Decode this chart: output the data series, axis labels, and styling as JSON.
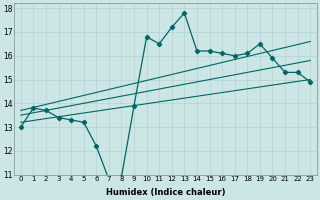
{
  "title": "",
  "xlabel": "Humidex (Indice chaleur)",
  "bg_color": "#cce5e5",
  "line_color": "#006666",
  "xlim": [
    -0.5,
    23.5
  ],
  "ylim": [
    11,
    18.2
  ],
  "yticks": [
    11,
    12,
    13,
    14,
    15,
    16,
    17,
    18
  ],
  "xticks": [
    0,
    1,
    2,
    3,
    4,
    5,
    6,
    7,
    8,
    9,
    10,
    11,
    12,
    13,
    14,
    15,
    16,
    17,
    18,
    19,
    20,
    21,
    22,
    23
  ],
  "series_main": {
    "x": [
      0,
      1,
      2,
      3,
      4,
      5,
      6,
      7,
      8,
      9,
      10,
      11,
      12,
      13,
      14,
      15,
      16,
      17,
      18,
      19,
      20,
      21,
      22,
      23
    ],
    "y": [
      13.0,
      13.8,
      13.7,
      13.4,
      13.3,
      13.2,
      12.2,
      10.8,
      10.9,
      13.9,
      16.8,
      16.5,
      17.2,
      17.8,
      16.2,
      16.2,
      16.1,
      16.0,
      16.1,
      16.5,
      15.9,
      15.3,
      15.3,
      14.9
    ]
  },
  "trend_lines": [
    {
      "x": [
        0,
        23
      ],
      "y": [
        13.7,
        16.6
      ]
    },
    {
      "x": [
        0,
        23
      ],
      "y": [
        13.5,
        15.8
      ]
    },
    {
      "x": [
        0,
        23
      ],
      "y": [
        13.2,
        15.0
      ]
    }
  ]
}
